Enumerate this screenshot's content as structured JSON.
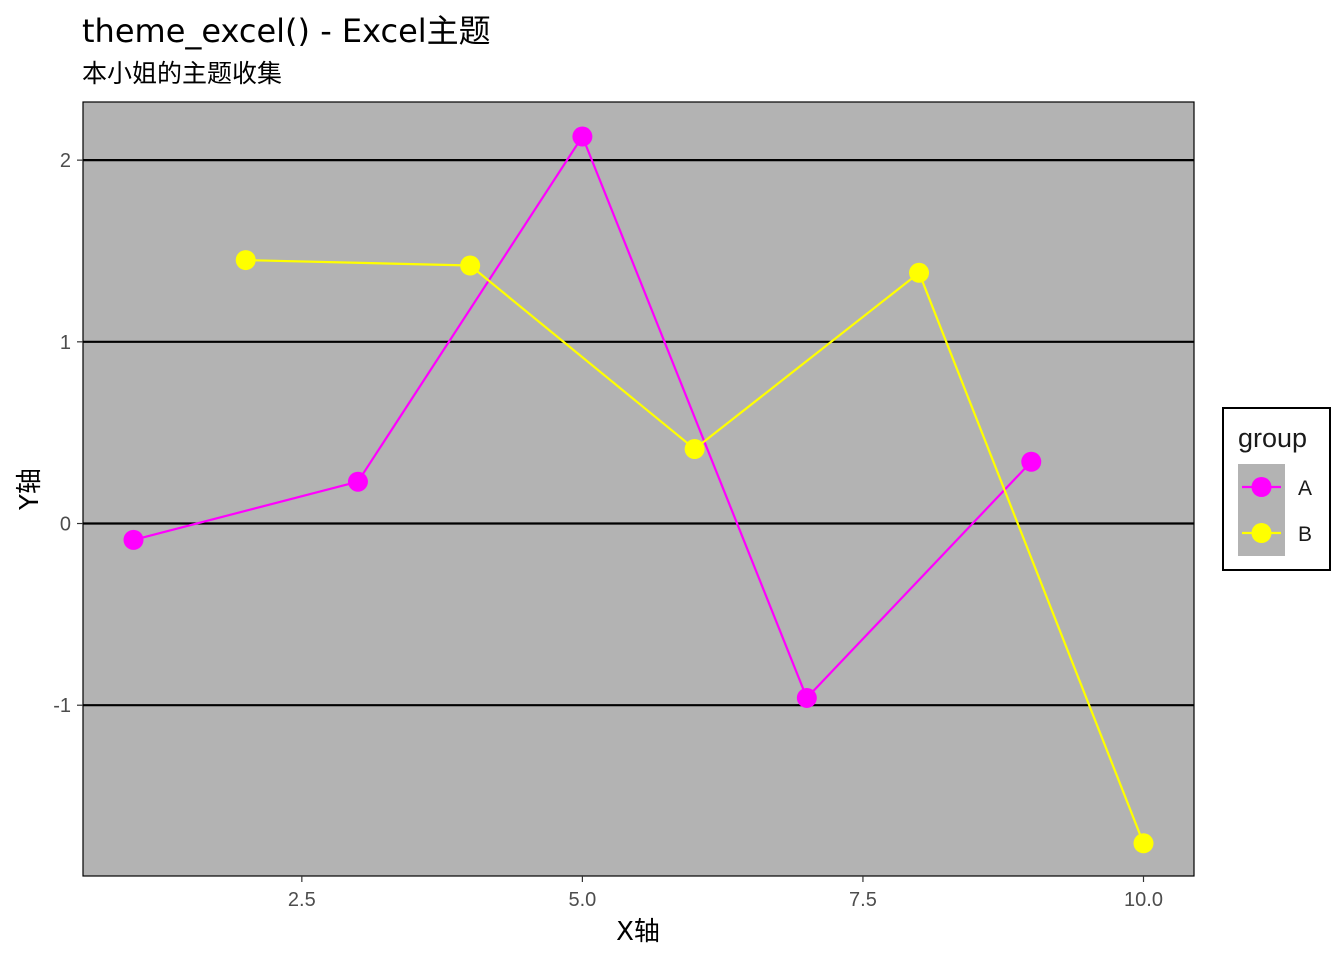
{
  "title": "theme_excel() - Excel主题",
  "subtitle": "本小姐的主题收集",
  "chart_data": {
    "type": "line",
    "title": "theme_excel() - Excel主题",
    "subtitle": "本小姐的主题收集",
    "xlabel": "X轴",
    "ylabel": "Y轴",
    "xlim": [
      0.55,
      10.45
    ],
    "ylim": [
      -1.94,
      2.32
    ],
    "x_ticks": [
      2.5,
      5.0,
      7.5,
      10.0
    ],
    "x_tick_labels": [
      "2.5",
      "5.0",
      "7.5",
      "10.0"
    ],
    "y_ticks": [
      -1,
      0,
      1,
      2
    ],
    "y_tick_labels": [
      "-1",
      "0",
      "1",
      "2"
    ],
    "grid": "horizontal major lines",
    "panel_background": "#b3b3b3",
    "legend": {
      "title": "group",
      "position": "right"
    },
    "series": [
      {
        "name": "A",
        "color": "#ff00ff",
        "x": [
          1,
          3,
          5,
          7,
          9
        ],
        "y": [
          -0.09,
          0.23,
          2.13,
          -0.96,
          0.34
        ]
      },
      {
        "name": "B",
        "color": "#ffff00",
        "x": [
          2,
          4,
          6,
          8,
          10
        ],
        "y": [
          1.45,
          1.42,
          0.41,
          1.38,
          -1.76
        ]
      }
    ]
  }
}
